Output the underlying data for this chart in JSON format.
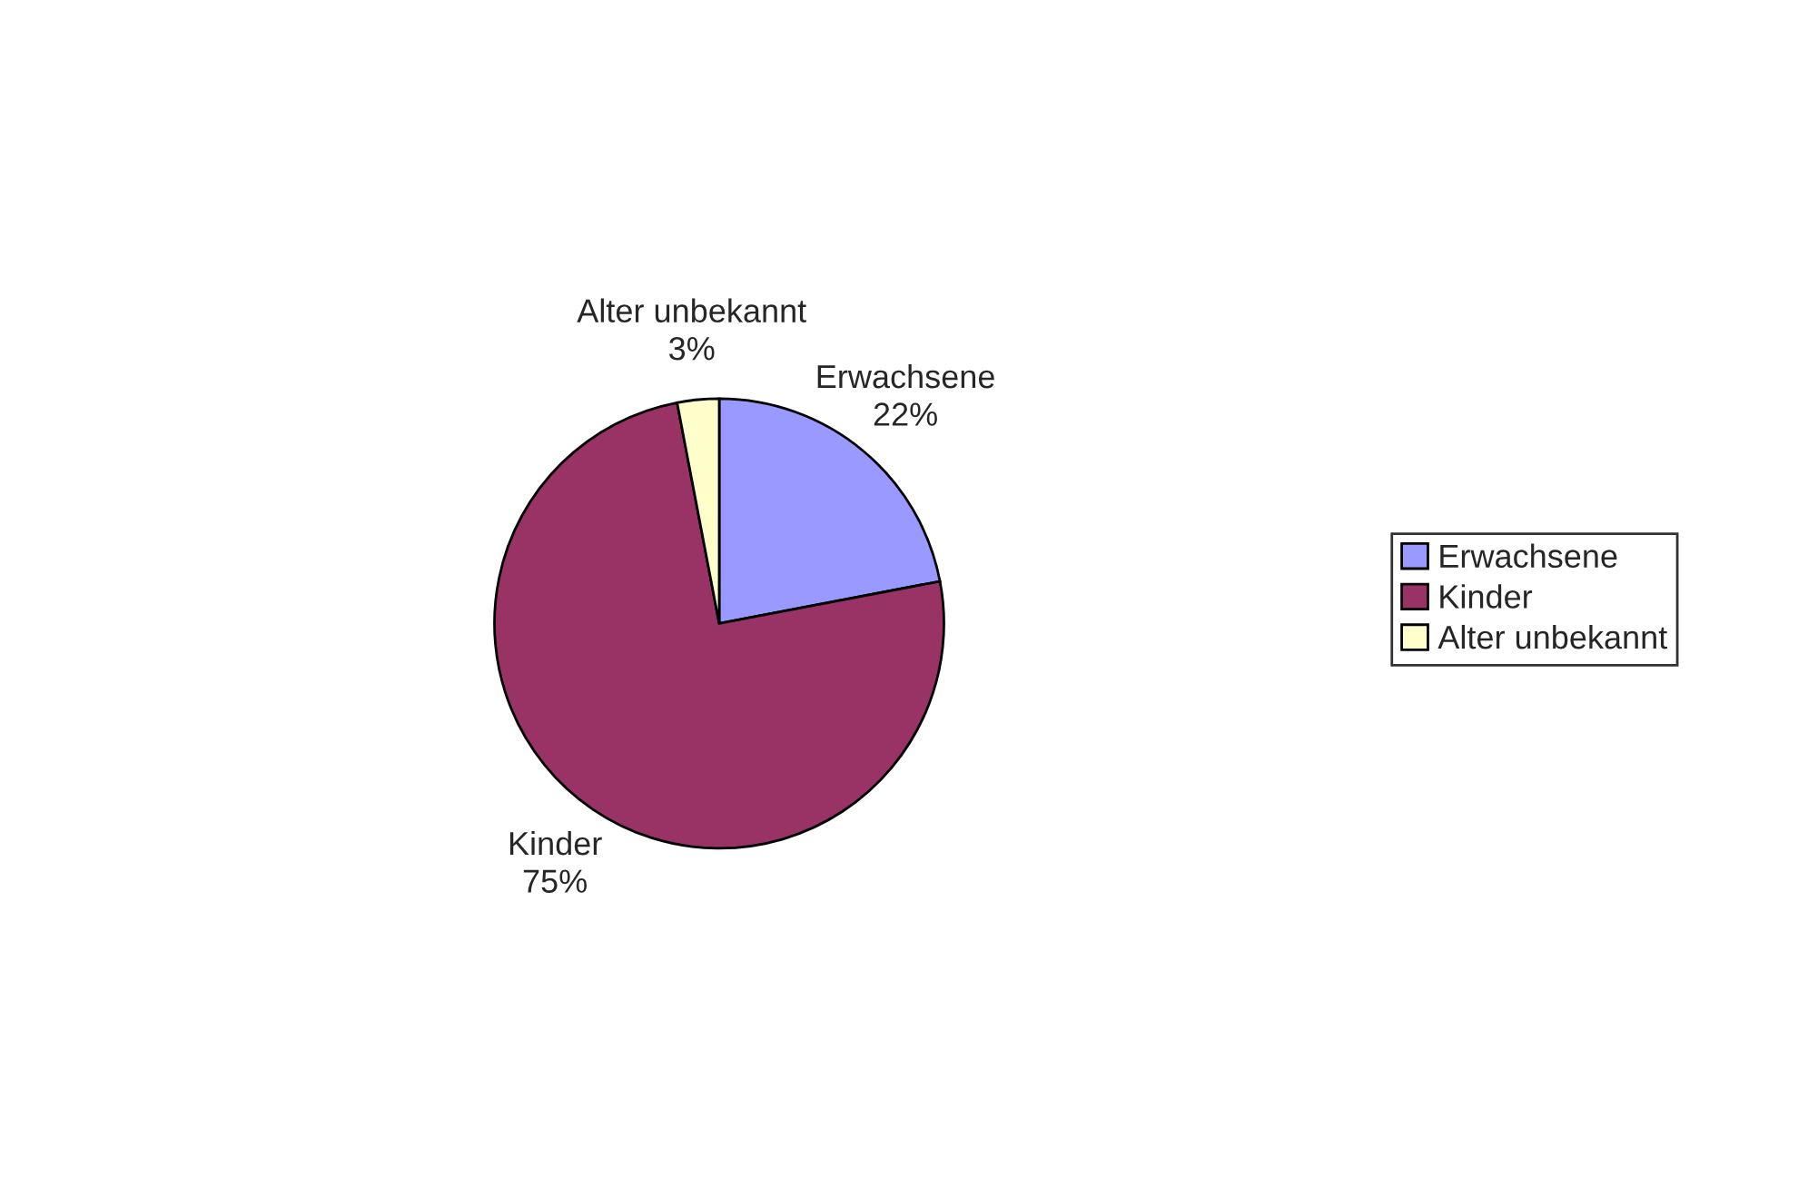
{
  "chart_data": {
    "type": "pie",
    "categories": [
      "Erwachsene",
      "Kinder",
      "Alter unbekannt"
    ],
    "values": [
      22,
      75,
      3
    ],
    "colors": [
      "#9999ff",
      "#993366",
      "#ffffcc"
    ],
    "value_labels": [
      "22%",
      "75%",
      "3%"
    ],
    "legend": "right"
  }
}
